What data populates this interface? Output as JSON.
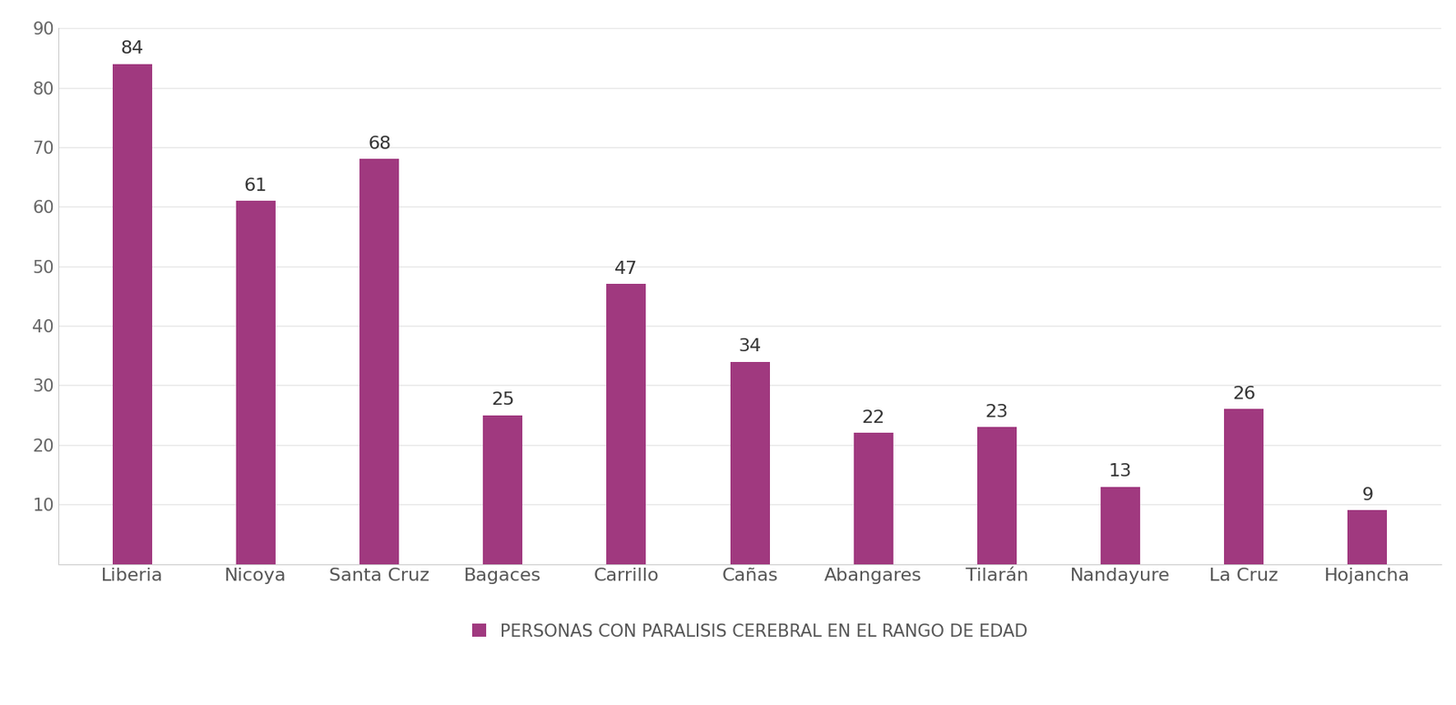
{
  "chart_data": {
    "type": "bar",
    "categories": [
      "Liberia",
      "Nicoya",
      "Santa Cruz",
      "Bagaces",
      "Carrillo",
      "Cañas",
      "Abangares",
      "Tilarán",
      "Nandayure",
      "La Cruz",
      "Hojancha"
    ],
    "series": [
      {
        "name": "PERSONAS CON PARALISIS CEREBRAL EN EL RANGO DE EDAD",
        "color": "#a0397f",
        "values": [
          84,
          61,
          68,
          25,
          47,
          34,
          22,
          23,
          13,
          26,
          9
        ]
      }
    ],
    "ylim": [
      0,
      90
    ],
    "yticks": [
      10,
      20,
      30,
      40,
      50,
      60,
      70,
      80,
      90
    ],
    "grid": true,
    "data_labels": true,
    "legend": "lower center"
  }
}
